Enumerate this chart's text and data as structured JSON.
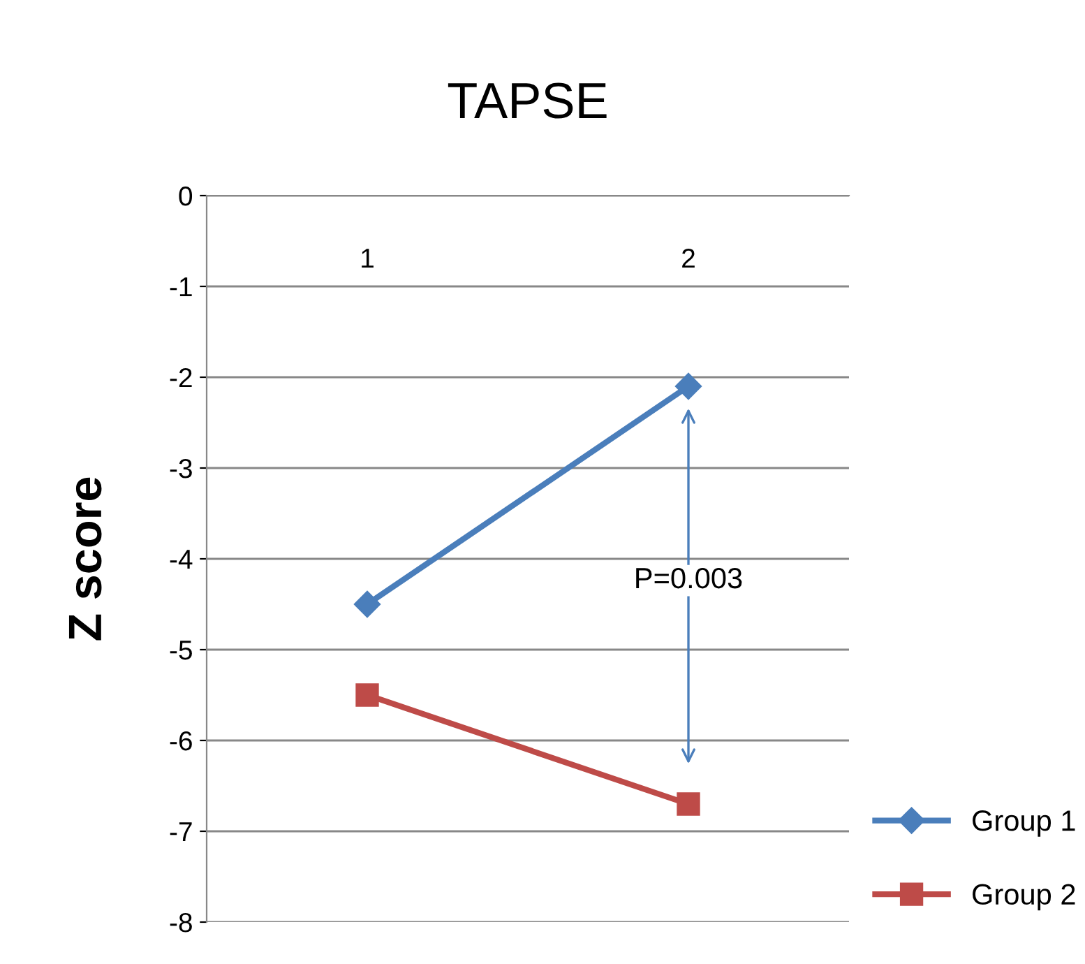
{
  "chart_data": {
    "type": "line",
    "title": "TAPSE",
    "ylabel": "Z score",
    "categories": [
      "1",
      "2"
    ],
    "series": [
      {
        "name": "Group 1",
        "color": "#4a7ebb",
        "marker": "diamond",
        "values": [
          -4.5,
          -2.1
        ]
      },
      {
        "name": "Group 2",
        "color": "#be4b48",
        "marker": "square",
        "values": [
          -5.5,
          -6.7
        ]
      }
    ],
    "ylim": [
      -8,
      0
    ],
    "yticks": [
      -8,
      -7,
      -6,
      -5,
      -4,
      -3,
      -2,
      -1,
      0
    ],
    "grid": "y",
    "legend": "bottom right",
    "annotations": [
      "P=0.003"
    ]
  }
}
